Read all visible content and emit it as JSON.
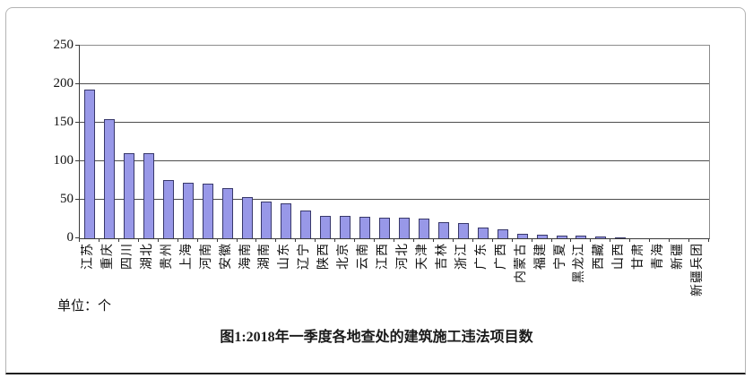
{
  "chart_data": {
    "type": "bar",
    "title": "图1:2018年一季度各地查处的建筑施工违法项目数",
    "unit_label": "单位：个",
    "categories": [
      "江苏",
      "重庆",
      "四川",
      "湖北",
      "贵州",
      "上海",
      "河南",
      "安徽",
      "海南",
      "湖南",
      "山东",
      "辽宁",
      "陕西",
      "北京",
      "云南",
      "江西",
      "河北",
      "天津",
      "吉林",
      "浙江",
      "广东",
      "广西",
      "内蒙古",
      "福建",
      "宁夏",
      "黑龙江",
      "西藏",
      "山西",
      "甘肃",
      "青海",
      "新疆",
      "新疆兵团"
    ],
    "values": [
      193,
      155,
      111,
      110,
      76,
      72,
      71,
      65,
      54,
      48,
      45,
      36,
      29,
      29,
      28,
      27,
      27,
      26,
      21,
      20,
      14,
      12,
      6,
      5,
      3,
      3,
      2,
      1,
      0,
      0,
      0,
      0
    ],
    "ylim": [
      0,
      250
    ],
    "yticks": [
      0,
      50,
      100,
      150,
      200,
      250
    ],
    "grid": true,
    "legend": "none",
    "bar_fill_color": "#9898e8",
    "bar_border_color": "#38386b",
    "gridline_color": "#4d4d4d",
    "axis_color": "#3a3a3a"
  }
}
